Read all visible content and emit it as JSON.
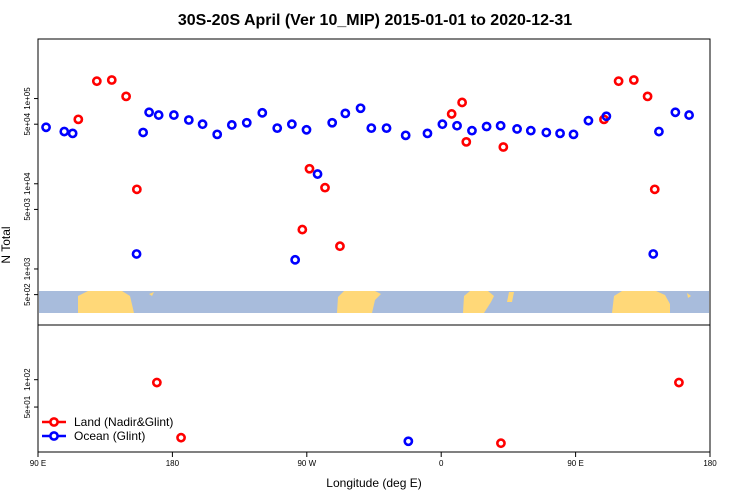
{
  "chart_data": {
    "type": "scatter",
    "title": "30S-20S April (Ver 10_MIP)   2015-01-01 to 2020-12-31",
    "xlabel": "Longitude (deg E)",
    "ylabel": "N Total",
    "x_ticks": [
      {
        "value": -90,
        "label": "90 E"
      },
      {
        "value": -45,
        "label": "180"
      },
      {
        "value": 0,
        "label": "90 W"
      },
      {
        "value": 45,
        "label": "0"
      },
      {
        "value": 90,
        "label": "90 E"
      },
      {
        "value": 135,
        "label": "180"
      }
    ],
    "xlim": [
      -90,
      135
    ],
    "top_panel": {
      "y_scale": "log",
      "ylim": [
        220,
        500000
      ],
      "y_ticks": [
        {
          "value": 500,
          "label": "5e+02"
        },
        {
          "value": 1000,
          "label": "1e+03"
        },
        {
          "value": 5000,
          "label": "5e+03"
        },
        {
          "value": 10000,
          "label": "1e+04"
        },
        {
          "value": 50000,
          "label": "5e+04"
        },
        {
          "value": 100000,
          "label": "1e+05"
        }
      ]
    },
    "bottom_panel": {
      "y_scale": "log",
      "ylim": [
        16,
        400
      ],
      "y_ticks": [
        {
          "value": 50,
          "label": "5e+01"
        },
        {
          "value": 100,
          "label": "1e+02"
        }
      ]
    },
    "series": [
      {
        "name": "Land (Nadir&Glint)",
        "color": "#ff0000",
        "top_points": [
          [
            -76.5,
            57000
          ],
          [
            -70.3,
            160000
          ],
          [
            -65.3,
            165000
          ],
          [
            -60.5,
            106000
          ],
          [
            -56.9,
            8600
          ],
          [
            -1.5,
            2900
          ],
          [
            0.9,
            15000
          ],
          [
            6.1,
            9000
          ],
          [
            11.1,
            1850
          ],
          [
            99.5,
            57000
          ],
          [
            104.4,
            160000
          ],
          [
            109.5,
            165000
          ],
          [
            114.1,
            106000
          ],
          [
            116.5,
            8600
          ]
        ],
        "top_points_b": [
          [
            48.5,
            66000
          ],
          [
            52.0,
            90000
          ],
          [
            53.4,
            31000
          ],
          [
            65.8,
            27000
          ]
        ],
        "bottom_points": [
          [
            -50.2,
            93
          ],
          [
            -42.1,
            23
          ],
          [
            65.0,
            20
          ],
          [
            124.6,
            93
          ]
        ]
      },
      {
        "name": "Ocean (Glint)",
        "color": "#0000ff",
        "top_points": [
          [
            -87.3,
            46000
          ],
          [
            -81.2,
            41000
          ],
          [
            -78.4,
            39000
          ],
          [
            -57.0,
            1500
          ],
          [
            -54.8,
            40000
          ],
          [
            -52.8,
            69000
          ],
          [
            -49.6,
            64000
          ],
          [
            -44.5,
            64000
          ],
          [
            -39.5,
            56000
          ],
          [
            -34.9,
            50000
          ],
          [
            -30.0,
            38000
          ],
          [
            -25.1,
            49000
          ],
          [
            -20.1,
            52000
          ],
          [
            -14.9,
            68000
          ],
          [
            -9.9,
            45000
          ],
          [
            -5.0,
            50000
          ],
          [
            -0.1,
            43000
          ],
          [
            -3.9,
            1280
          ],
          [
            3.6,
            13000
          ],
          [
            8.5,
            52000
          ],
          [
            12.9,
            67000
          ],
          [
            18.0,
            77000
          ],
          [
            21.6,
            45000
          ],
          [
            26.7,
            45000
          ],
          [
            33.1,
            37000
          ],
          [
            40.4,
            39000
          ],
          [
            45.4,
            50000
          ],
          [
            50.3,
            48000
          ],
          [
            55.3,
            42000
          ],
          [
            60.2,
            47000
          ],
          [
            64.9,
            48000
          ],
          [
            70.4,
            44000
          ],
          [
            75.0,
            42000
          ],
          [
            80.2,
            40000
          ],
          [
            84.8,
            39000
          ],
          [
            89.3,
            38000
          ],
          [
            94.3,
            55000
          ],
          [
            100.3,
            62000
          ],
          [
            116.0,
            1500
          ],
          [
            117.9,
            41000
          ],
          [
            123.4,
            69000
          ],
          [
            128.0,
            64000
          ]
        ],
        "bottom_points": [
          [
            34.0,
            21
          ]
        ]
      }
    ],
    "landmask_colors": {
      "ocean": "#a8bcdc",
      "land": "#ffd878"
    },
    "legend": {
      "placement": "bottom-left",
      "entries": [
        "Land (Nadir&Glint)",
        "Ocean (Glint)"
      ]
    }
  }
}
